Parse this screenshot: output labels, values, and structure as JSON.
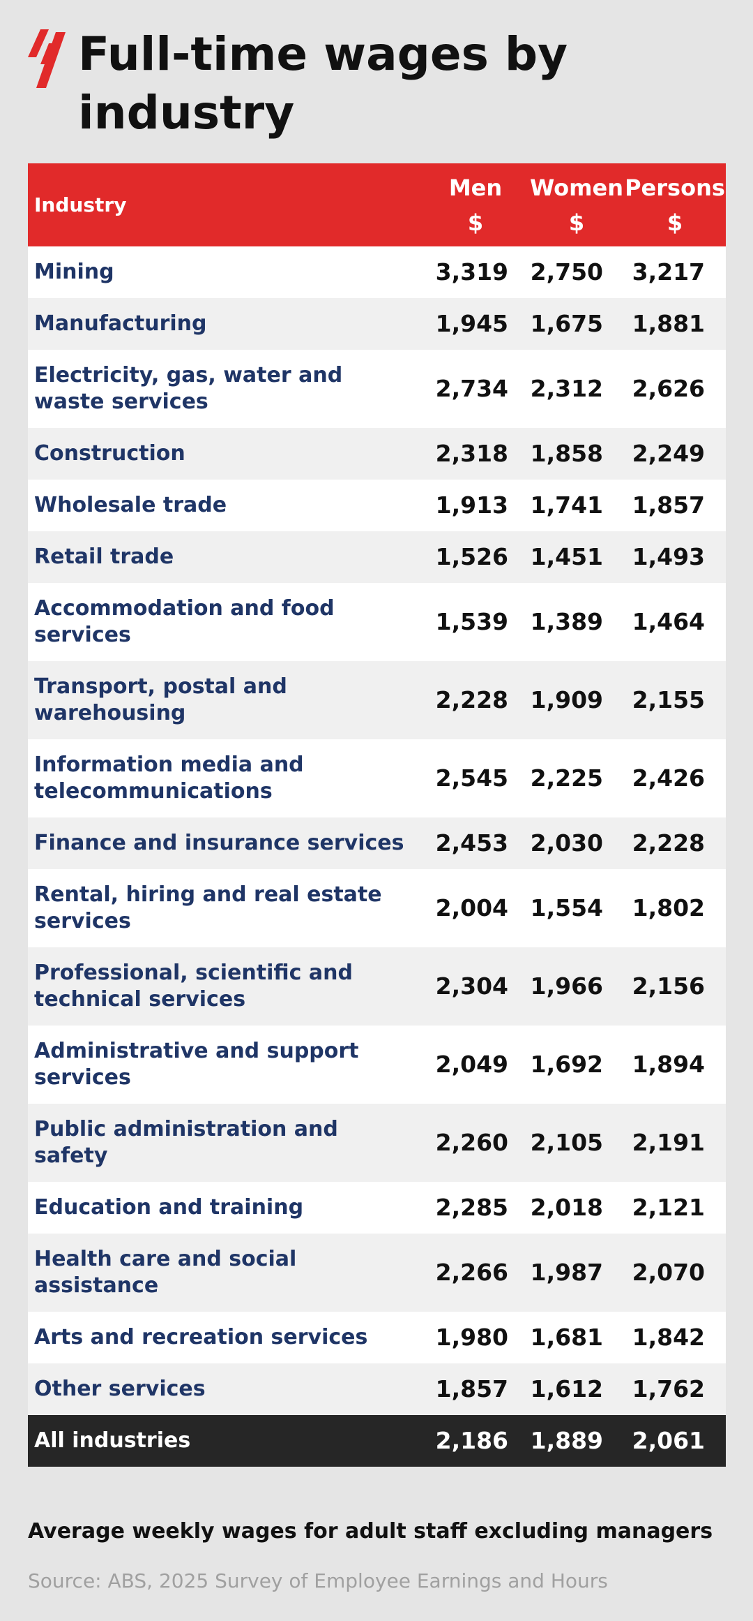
{
  "header": {
    "title": "Full-time wages by industry"
  },
  "table": {
    "columns": [
      [
        "Industry"
      ],
      [
        "Men",
        "$"
      ],
      [
        "Women",
        "$"
      ],
      [
        "Persons",
        "$"
      ]
    ],
    "rows": [
      [
        "Mining",
        "3,319",
        "2,750",
        "3,217"
      ],
      [
        "Manufacturing",
        "1,945",
        "1,675",
        "1,881"
      ],
      [
        "Electricity, gas, water and waste services",
        "2,734",
        "2,312",
        "2,626"
      ],
      [
        "Construction",
        "2,318",
        "1,858",
        "2,249"
      ],
      [
        "Wholesale trade",
        "1,913",
        "1,741",
        "1,857"
      ],
      [
        "Retail trade",
        "1,526",
        "1,451",
        "1,493"
      ],
      [
        "Accommodation and food services",
        "1,539",
        "1,389",
        "1,464"
      ],
      [
        "Transport, postal and warehousing",
        "2,228",
        "1,909",
        "2,155"
      ],
      [
        "Information media and telecommunications",
        "2,545",
        "2,225",
        "2,426"
      ],
      [
        "Finance and insurance services",
        "2,453",
        "2,030",
        "2,228"
      ],
      [
        "Rental, hiring and real estate services",
        "2,004",
        "1,554",
        "1,802"
      ],
      [
        "Professional, scientific and technical services",
        "2,304",
        "1,966",
        "2,156"
      ],
      [
        "Administrative and support services",
        "2,049",
        "1,692",
        "1,894"
      ],
      [
        "Public administration and safety",
        "2,260",
        "2,105",
        "2,191"
      ],
      [
        "Education and training",
        "2,285",
        "2,018",
        "2,121"
      ],
      [
        "Health care and social assistance",
        "2,266",
        "1,987",
        "2,070"
      ],
      [
        "Arts and recreation services",
        "1,980",
        "1,681",
        "1,842"
      ],
      [
        "Other services",
        "1,857",
        "1,612",
        "1,762"
      ]
    ],
    "total": [
      "All industries",
      "2,186",
      "1,889",
      "2,061"
    ]
  },
  "footer": {
    "note": "Average weekly wages for adult staff excluding managers",
    "source": "Source: ABS, 2025 Survey of Employee Earnings and Hours"
  }
}
